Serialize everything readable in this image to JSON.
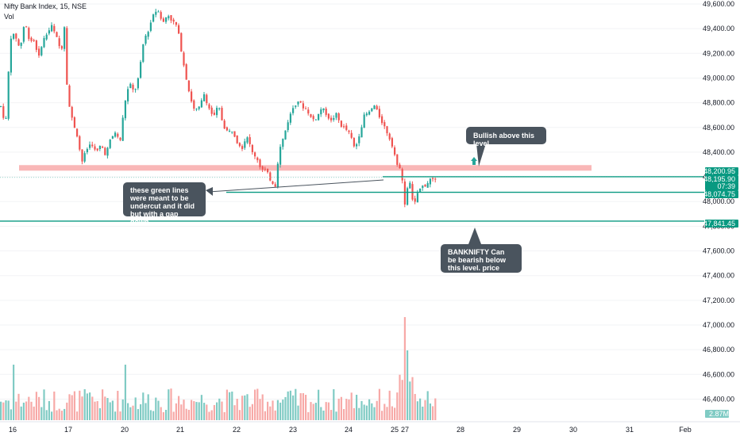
{
  "header": {
    "symbol": "Nifty Bank Index, 15, NSE",
    "volume_label": "Vol"
  },
  "colors": {
    "up": "#26a69a",
    "down": "#ef5350",
    "vol_up": "#80cbc4",
    "vol_down": "#f7a9a7",
    "level": "#089981",
    "zone": "#f9b7b7",
    "callout": "#4a545e"
  },
  "chart_data": {
    "type": "candlestick",
    "ylim": [
      46300,
      49650
    ],
    "y_ticks": [
      "49,600.00",
      "49,400.00",
      "49,200.00",
      "49,000.00",
      "48,800.00",
      "48,600.00",
      "48,400.00",
      "48,200.00",
      "48,000.00",
      "47,800.00",
      "47,600.00",
      "47,400.00",
      "47,200.00",
      "47,000.00",
      "46,800.00",
      "46,600.00",
      "46,400.00"
    ],
    "y_tick_values": [
      49600,
      49400,
      49200,
      49000,
      48800,
      48600,
      48400,
      48200,
      48000,
      47800,
      47600,
      47400,
      47200,
      47000,
      46800,
      46600,
      46400
    ],
    "x_ticks": [
      "16",
      "17",
      "20",
      "21",
      "22",
      "23",
      "24",
      "25",
      "27",
      "28",
      "29",
      "30",
      "31",
      "Feb"
    ],
    "price_tags": [
      {
        "text": "48,200.95",
        "value": 48200.95
      },
      {
        "text": "48,195.90",
        "value": 48195.9
      },
      {
        "text": "07:39",
        "value": 48195.9
      },
      {
        "text": "48,074.75",
        "value": 48074.75
      },
      {
        "text": "47,841.45",
        "value": 47841.45
      }
    ],
    "volume_tag": "2.87M",
    "resistance_zone": [
      48250,
      48295
    ],
    "levels": [
      48200.95,
      48074.75,
      47841.45
    ],
    "anchors": [
      [
        0,
        48770
      ],
      [
        6,
        48620
      ],
      [
        12,
        49330
      ],
      [
        18,
        49350
      ],
      [
        24,
        49230
      ],
      [
        30,
        49460
      ],
      [
        36,
        49310
      ],
      [
        42,
        49300
      ],
      [
        48,
        49170
      ],
      [
        52,
        49290
      ],
      [
        58,
        49360
      ],
      [
        64,
        49420
      ],
      [
        70,
        49330
      ],
      [
        76,
        49210
      ],
      [
        80,
        49420
      ],
      [
        82,
        49040
      ],
      [
        86,
        48780
      ],
      [
        90,
        48660
      ],
      [
        96,
        48540
      ],
      [
        102,
        48320
      ],
      [
        108,
        48420
      ],
      [
        114,
        48480
      ],
      [
        120,
        48390
      ],
      [
        126,
        48460
      ],
      [
        132,
        48380
      ],
      [
        138,
        48500
      ],
      [
        144,
        48560
      ],
      [
        150,
        48480
      ],
      [
        156,
        48800
      ],
      [
        162,
        48960
      ],
      [
        168,
        48880
      ],
      [
        174,
        49020
      ],
      [
        180,
        49310
      ],
      [
        186,
        49390
      ],
      [
        192,
        49520
      ],
      [
        198,
        49560
      ],
      [
        204,
        49440
      ],
      [
        210,
        49520
      ],
      [
        216,
        49460
      ],
      [
        222,
        49420
      ],
      [
        228,
        49200
      ],
      [
        232,
        49050
      ],
      [
        238,
        48860
      ],
      [
        244,
        48730
      ],
      [
        250,
        48760
      ],
      [
        256,
        48870
      ],
      [
        262,
        48760
      ],
      [
        268,
        48680
      ],
      [
        274,
        48780
      ],
      [
        280,
        48620
      ],
      [
        286,
        48560
      ],
      [
        292,
        48580
      ],
      [
        298,
        48480
      ],
      [
        304,
        48440
      ],
      [
        310,
        48540
      ],
      [
        316,
        48400
      ],
      [
        322,
        48360
      ],
      [
        328,
        48260
      ],
      [
        334,
        48250
      ],
      [
        340,
        48170
      ],
      [
        346,
        48130
      ],
      [
        350,
        48400
      ],
      [
        356,
        48520
      ],
      [
        362,
        48660
      ],
      [
        368,
        48760
      ],
      [
        374,
        48820
      ],
      [
        380,
        48770
      ],
      [
        386,
        48740
      ],
      [
        392,
        48660
      ],
      [
        398,
        48680
      ],
      [
        404,
        48760
      ],
      [
        410,
        48710
      ],
      [
        416,
        48650
      ],
      [
        422,
        48710
      ],
      [
        428,
        48620
      ],
      [
        434,
        48590
      ],
      [
        440,
        48540
      ],
      [
        446,
        48420
      ],
      [
        452,
        48560
      ],
      [
        458,
        48700
      ],
      [
        464,
        48720
      ],
      [
        470,
        48780
      ],
      [
        476,
        48700
      ],
      [
        482,
        48620
      ],
      [
        488,
        48540
      ],
      [
        494,
        48440
      ],
      [
        500,
        48260
      ],
      [
        504,
        48300
      ],
      [
        508,
        47960
      ],
      [
        512,
        48100
      ],
      [
        516,
        48150
      ],
      [
        520,
        47940
      ],
      [
        524,
        48060
      ],
      [
        530,
        48120
      ],
      [
        536,
        48140
      ],
      [
        542,
        48190
      ],
      [
        546,
        48150
      ],
      [
        550,
        48196
      ]
    ]
  }
}
